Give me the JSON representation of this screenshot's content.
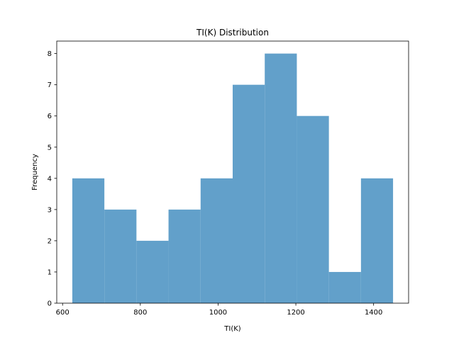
{
  "chart_data": {
    "type": "bar",
    "title": "TI(K) Distribution",
    "xlabel": "TI(K)",
    "ylabel": "Frequency",
    "bin_edges": [
      625,
      707.5,
      790,
      872.5,
      955,
      1037.5,
      1120,
      1202.5,
      1285,
      1367.5,
      1450
    ],
    "values": [
      4,
      3,
      2,
      3,
      4,
      7,
      8,
      6,
      1,
      4
    ],
    "xlim": [
      585,
      1490
    ],
    "ylim": [
      0,
      8.4
    ],
    "xticks": [
      600,
      800,
      1000,
      1200,
      1400
    ],
    "yticks": [
      0,
      1,
      2,
      3,
      4,
      5,
      6,
      7,
      8
    ],
    "bar_color": "#62a0ca",
    "grid": false,
    "legend": "none"
  }
}
